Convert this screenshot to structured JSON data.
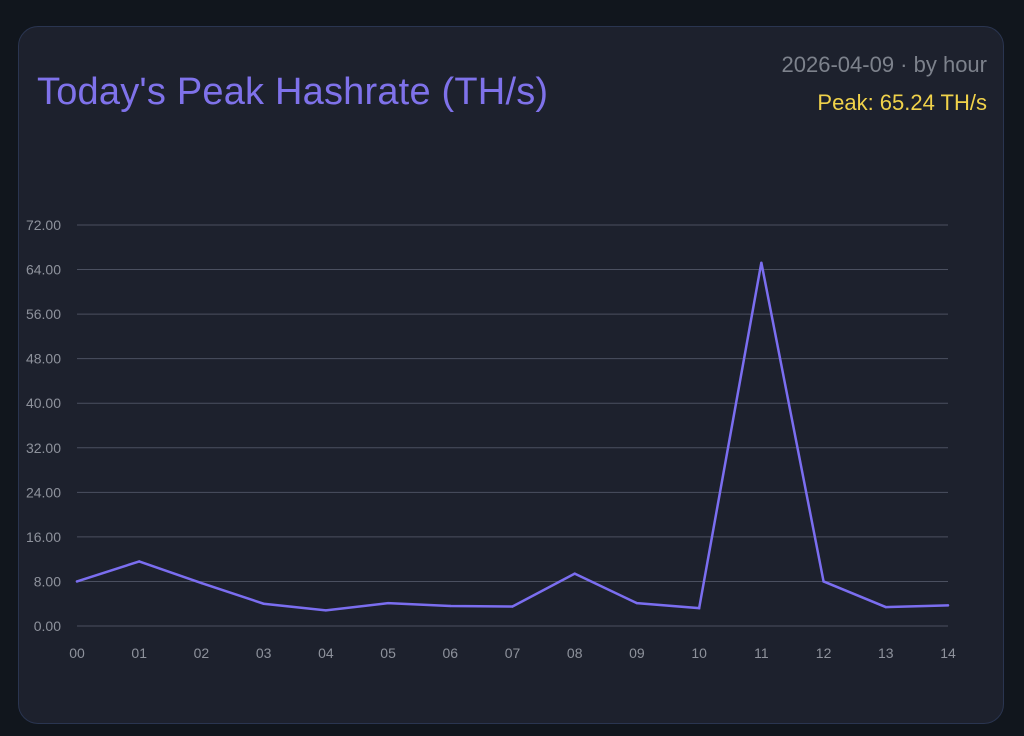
{
  "card": {
    "title": "Today's Peak Hashrate (TH/s)",
    "date_label": "2026-04-09 · by hour",
    "peak_label": "Peak: 65.24 TH/s"
  },
  "colors": {
    "line": "#7b6ef0",
    "grid": "#4b5060",
    "tick_text": "#8e929c",
    "title": "#7f72ea",
    "peak": "#f0d24a",
    "muted": "#7d828c"
  },
  "chart_data": {
    "type": "line",
    "title": "Today's Peak Hashrate (TH/s)",
    "xlabel": "",
    "ylabel": "",
    "categories": [
      "00",
      "01",
      "02",
      "03",
      "04",
      "05",
      "06",
      "07",
      "08",
      "09",
      "10",
      "11",
      "12",
      "13",
      "14"
    ],
    "series": [
      {
        "values": [
          8.0,
          11.6,
          7.7,
          4.0,
          2.8,
          4.1,
          3.6,
          3.5,
          9.4,
          4.1,
          3.2,
          65.24,
          8.0,
          3.4,
          3.7
        ]
      }
    ],
    "ylim": [
      0,
      72
    ],
    "yticks": [
      "0.00",
      "8.00",
      "16.00",
      "24.00",
      "32.00",
      "40.00",
      "48.00",
      "56.00",
      "64.00",
      "72.00"
    ],
    "grid": true,
    "legend": "none"
  }
}
